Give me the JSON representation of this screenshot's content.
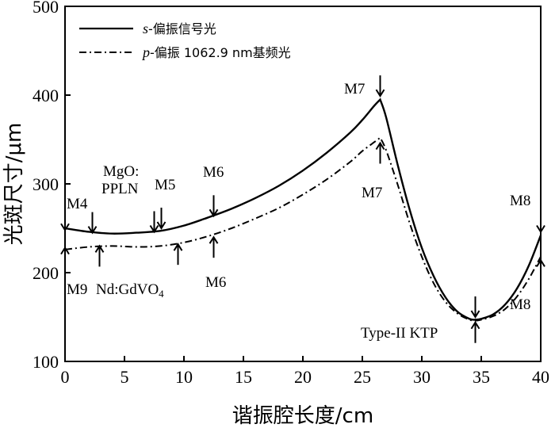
{
  "chart_data": {
    "type": "line",
    "xlabel": "谐振腔长度/cm",
    "ylabel": "光斑尺寸/μm",
    "xlim": [
      0,
      40
    ],
    "ylim": [
      100,
      500
    ],
    "xticks": [
      "0",
      "5",
      "10",
      "15",
      "20",
      "25",
      "30",
      "35",
      "40"
    ],
    "yticks": [
      "100",
      "200",
      "300",
      "400",
      "500"
    ],
    "grid": false,
    "legend_position": "top-left",
    "series": [
      {
        "name_italic": "s",
        "name_rest": "-偏振信号光",
        "style": "solid",
        "points": [
          [
            0,
            250
          ],
          [
            2,
            246
          ],
          [
            4,
            244
          ],
          [
            6,
            245
          ],
          [
            8,
            247
          ],
          [
            10,
            253
          ],
          [
            12,
            262
          ],
          [
            14,
            272
          ],
          [
            16,
            284
          ],
          [
            18,
            298
          ],
          [
            20,
            315
          ],
          [
            22,
            335
          ],
          [
            24,
            358
          ],
          [
            25,
            372
          ],
          [
            26,
            388
          ],
          [
            26.5,
            395
          ],
          [
            27,
            375
          ],
          [
            28,
            320
          ],
          [
            29,
            270
          ],
          [
            30,
            228
          ],
          [
            31,
            196
          ],
          [
            32,
            172
          ],
          [
            33,
            156
          ],
          [
            34,
            148
          ],
          [
            34.5,
            147
          ],
          [
            35,
            148
          ],
          [
            36,
            153
          ],
          [
            37,
            164
          ],
          [
            38,
            182
          ],
          [
            39,
            208
          ],
          [
            40,
            242
          ]
        ]
      },
      {
        "name_italic": "p",
        "name_rest": "-偏振 1062.9 nm基频光",
        "style": "dashdot",
        "points": [
          [
            0,
            226
          ],
          [
            2,
            229
          ],
          [
            4,
            230
          ],
          [
            6,
            229
          ],
          [
            8,
            230
          ],
          [
            10,
            234
          ],
          [
            12,
            241
          ],
          [
            14,
            250
          ],
          [
            16,
            261
          ],
          [
            18,
            273
          ],
          [
            20,
            288
          ],
          [
            22,
            305
          ],
          [
            24,
            325
          ],
          [
            25,
            337
          ],
          [
            26,
            347
          ],
          [
            26.5,
            352
          ],
          [
            27,
            338
          ],
          [
            28,
            298
          ],
          [
            29,
            255
          ],
          [
            30,
            218
          ],
          [
            31,
            188
          ],
          [
            32,
            167
          ],
          [
            33,
            154
          ],
          [
            34,
            147
          ],
          [
            34.5,
            146
          ],
          [
            35,
            147
          ],
          [
            36,
            151
          ],
          [
            37,
            159
          ],
          [
            38,
            173
          ],
          [
            39,
            193
          ],
          [
            40,
            218
          ]
        ]
      }
    ],
    "annotations": {
      "m4": "M4",
      "m9": "M9",
      "nd_gdvo4": "Nd:GdVO",
      "nd_sub": "4",
      "mgo_line1": "MgO:",
      "mgo_line2": "PPLN",
      "m5": "M5",
      "m6_top": "M6",
      "m6_bottom": "M6",
      "m7_top": "M7",
      "m7_bottom": "M7",
      "m8_top": "M8",
      "m8_bottom": "M8",
      "ktp": "Type-II KTP"
    }
  }
}
